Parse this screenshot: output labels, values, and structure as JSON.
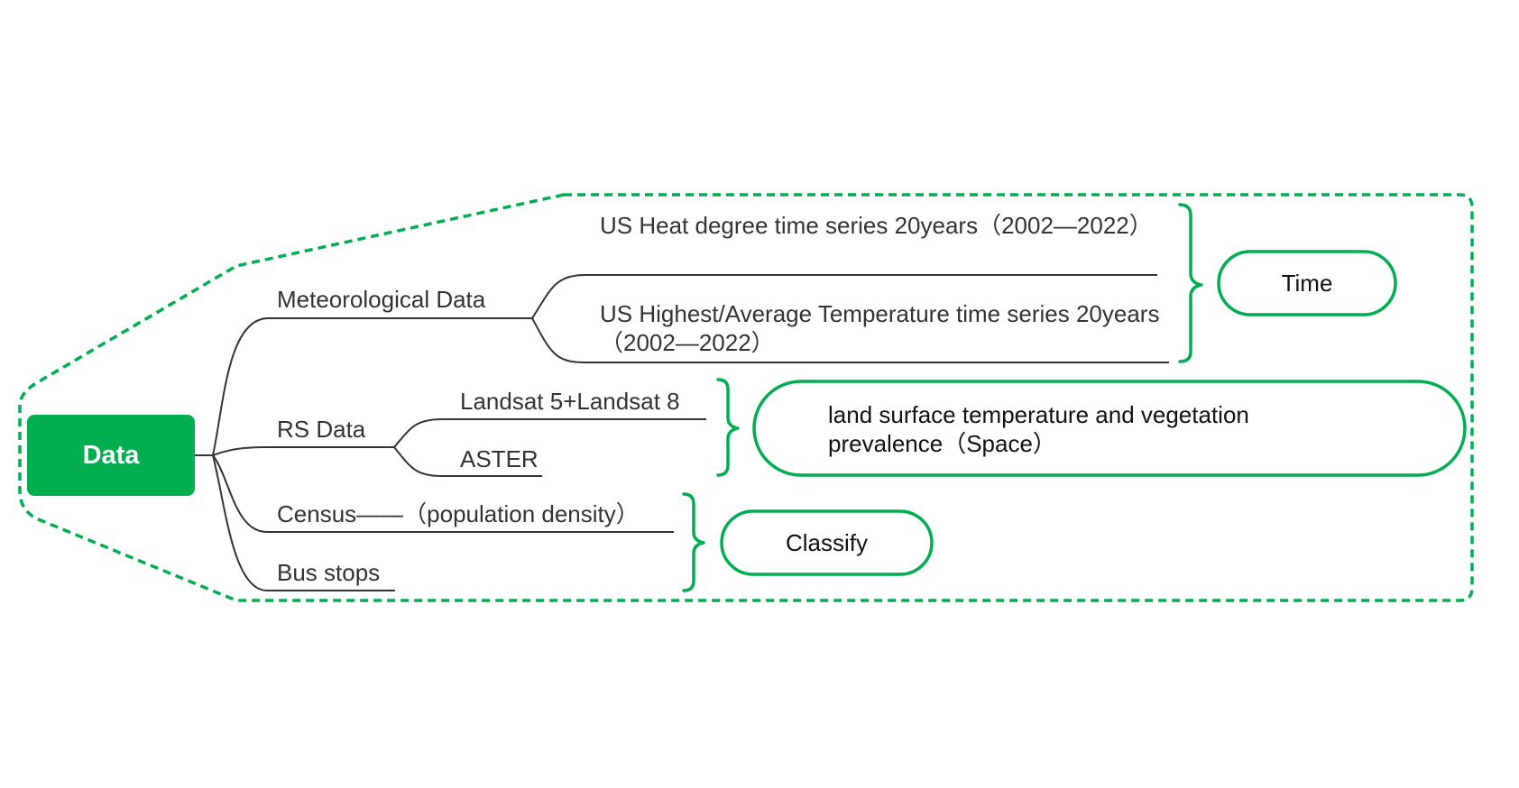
{
  "root": {
    "label": "Data"
  },
  "branches": {
    "meteorological": {
      "label": "Meteorological Data",
      "children": [
        "US Heat degree time series 20years（2002—2022）",
        "US Highest/Average Temperature time series 20years（2002—2022）"
      ]
    },
    "rs": {
      "label": "RS Data",
      "children": [
        "Landsat 5+Landsat 8",
        "ASTER"
      ]
    },
    "census": {
      "label": "Census——（population density）"
    },
    "bus": {
      "label": "Bus stops"
    }
  },
  "summaries": {
    "time": "Time",
    "space": "land surface temperature and vegetation prevalence（Space）",
    "classify": "Classify"
  },
  "colors": {
    "accent": "#00ae50",
    "line": "#333333",
    "text": "#333333"
  }
}
